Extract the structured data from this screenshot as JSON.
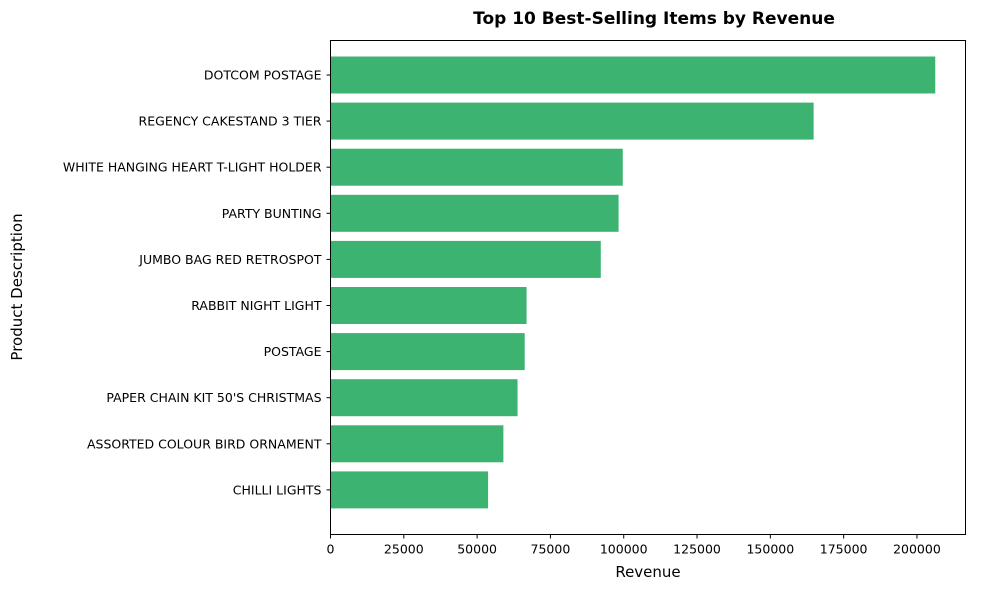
{
  "chart_data": {
    "type": "bar",
    "orientation": "horizontal",
    "title": "Top 10 Best-Selling Items by Revenue",
    "xlabel": "Revenue",
    "ylabel": "Product Description",
    "categories": [
      "DOTCOM POSTAGE",
      "REGENCY CAKESTAND 3 TIER",
      "WHITE HANGING HEART T-LIGHT HOLDER",
      "PARTY BUNTING",
      "JUMBO BAG RED RETROSPOT",
      "RABBIT NIGHT LIGHT",
      "POSTAGE",
      "PAPER CHAIN KIT 50'S CHRISTMAS ",
      "ASSORTED COLOUR BIRD ORNAMENT",
      "CHILLI LIGHTS"
    ],
    "values": [
      206245,
      164763,
      99669,
      98243,
      92175,
      66870,
      66231,
      63791,
      58960,
      53747
    ],
    "xlim": [
      0,
      216557
    ],
    "xticks": [
      0,
      25000,
      50000,
      75000,
      100000,
      125000,
      150000,
      175000,
      200000
    ],
    "xtick_labels": [
      "0",
      "25000",
      "50000",
      "75000",
      "100000",
      "125000",
      "150000",
      "175000",
      "200000"
    ],
    "bar_color": "#3cb371",
    "grid": false,
    "legend": "none"
  }
}
